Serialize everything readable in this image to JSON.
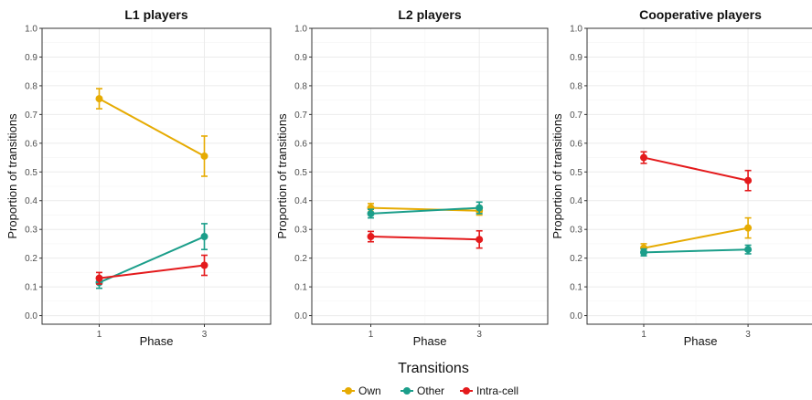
{
  "chart_data": {
    "type": "line",
    "legend": {
      "title": "Transitions",
      "position": "bottom"
    },
    "colors": {
      "Own": "#E6AB02",
      "Other": "#1B9E8A",
      "Intra-cell": "#E41A1C",
      "grid": "#ebebeb",
      "panel_border": "#333333"
    },
    "panels": [
      {
        "title": "L1 players",
        "xlabel": "Phase",
        "ylabel": "Proportion of transitions",
        "x": [
          1,
          3
        ],
        "ylim": [
          -0.03,
          1.0
        ],
        "yticks": [
          "0.0",
          "0.1",
          "0.2",
          "0.3",
          "0.4",
          "0.5",
          "0.6",
          "0.7",
          "0.8",
          "0.9",
          "1.0"
        ],
        "series": [
          {
            "name": "Own",
            "values": [
              0.755,
              0.555
            ],
            "errors": [
              0.035,
              0.07
            ]
          },
          {
            "name": "Other",
            "values": [
              0.115,
              0.275
            ],
            "errors": [
              0.02,
              0.045
            ]
          },
          {
            "name": "Intra-cell",
            "values": [
              0.13,
              0.175
            ],
            "errors": [
              0.02,
              0.035
            ]
          }
        ]
      },
      {
        "title": "L2 players",
        "xlabel": "Phase",
        "ylabel": "Proportion of transitions",
        "x": [
          1,
          3
        ],
        "ylim": [
          -0.03,
          1.0
        ],
        "yticks": [
          "0.0",
          "0.1",
          "0.2",
          "0.3",
          "0.4",
          "0.5",
          "0.6",
          "0.7",
          "0.8",
          "0.9",
          "1.0"
        ],
        "series": [
          {
            "name": "Own",
            "values": [
              0.375,
              0.365
            ],
            "errors": [
              0.015,
              0.015
            ]
          },
          {
            "name": "Other",
            "values": [
              0.355,
              0.375
            ],
            "errors": [
              0.015,
              0.02
            ]
          },
          {
            "name": "Intra-cell",
            "values": [
              0.275,
              0.265
            ],
            "errors": [
              0.018,
              0.03
            ]
          }
        ]
      },
      {
        "title": "Cooperative players",
        "xlabel": "Phase",
        "ylabel": "Proportion of transitions",
        "x": [
          1,
          3
        ],
        "ylim": [
          -0.03,
          1.0
        ],
        "yticks": [
          "0.0",
          "0.1",
          "0.2",
          "0.3",
          "0.4",
          "0.5",
          "0.6",
          "0.7",
          "0.8",
          "0.9",
          "1.0"
        ],
        "series": [
          {
            "name": "Own",
            "values": [
              0.235,
              0.305
            ],
            "errors": [
              0.015,
              0.035
            ]
          },
          {
            "name": "Other",
            "values": [
              0.22,
              0.23
            ],
            "errors": [
              0.012,
              0.015
            ]
          },
          {
            "name": "Intra-cell",
            "values": [
              0.55,
              0.47
            ],
            "errors": [
              0.02,
              0.035
            ]
          }
        ]
      }
    ],
    "xticks": [
      "1",
      "3"
    ]
  }
}
